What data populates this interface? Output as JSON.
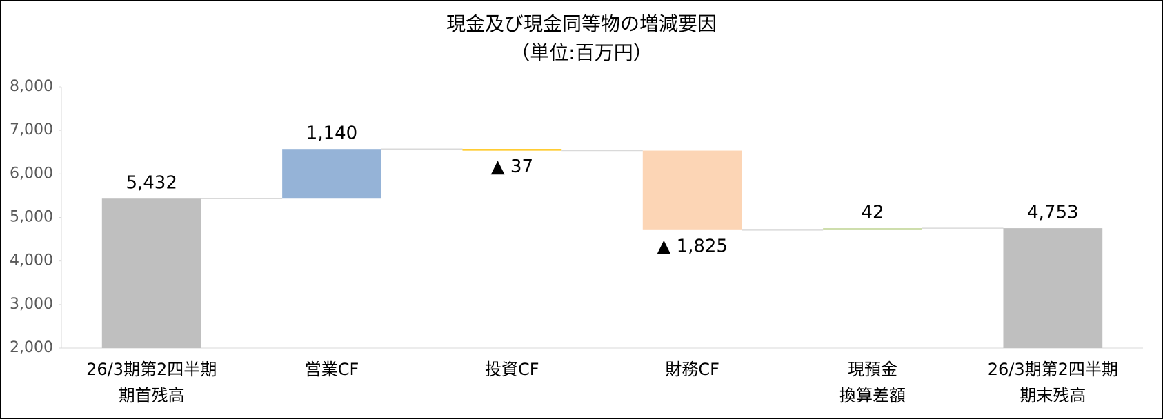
{
  "chart_data": {
    "type": "waterfall",
    "title": "現金及び現金同等物の増減要因",
    "subtitle": "（単位:百万円）",
    "categories": [
      [
        "26/3期第2四半期",
        "期首残高"
      ],
      [
        "営業CF"
      ],
      [
        "投資CF"
      ],
      [
        "財務CF"
      ],
      [
        "現預金",
        "換算差額"
      ],
      [
        "26/3期第2四半期",
        "期末残高"
      ]
    ],
    "values": [
      5432,
      1140,
      -37,
      -1825,
      42,
      4753
    ],
    "value_labels": [
      "5,432",
      "1,140",
      "▲ 37",
      "▲ 1,825",
      "42",
      "4,753"
    ],
    "totals": [
      true,
      false,
      false,
      false,
      false,
      true
    ],
    "colors": [
      "#bfbfbf",
      "#95b3d7",
      "#ffc000",
      "#fcd5b5",
      "#c4d79b",
      "#bfbfbf"
    ],
    "ylim": [
      2000,
      8000
    ],
    "yticks": [
      {
        "value": 2000,
        "label": "2,000"
      },
      {
        "value": 3000,
        "label": "3,000"
      },
      {
        "value": 4000,
        "label": "4,000"
      },
      {
        "value": 5000,
        "label": "5,000"
      },
      {
        "value": 6000,
        "label": "6,000"
      },
      {
        "value": 7000,
        "label": "7,000"
      },
      {
        "value": 8000,
        "label": "8,000"
      }
    ],
    "grid": false
  }
}
